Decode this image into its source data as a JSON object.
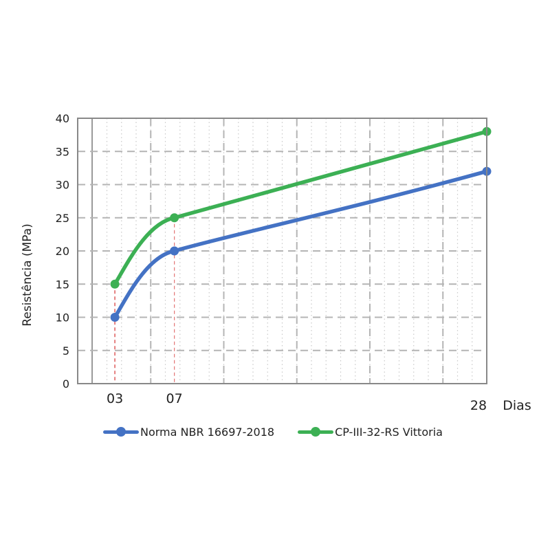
{
  "chart_data": {
    "type": "line",
    "title": "",
    "xlabel": "Dias",
    "ylabel": "Resistência (MPa)",
    "ylim": [
      0,
      40
    ],
    "xlim": [
      0.5,
      28
    ],
    "yticks": [
      "0",
      "5",
      "10",
      "15",
      "20",
      "25",
      "30",
      "35",
      "40"
    ],
    "xticks": [
      {
        "value": 3,
        "label": "03"
      },
      {
        "value": 7,
        "label": "07"
      },
      {
        "value": 28,
        "label": "28"
      }
    ],
    "grid": true,
    "legend_position": "bottom",
    "series": [
      {
        "name": "Norma NBR 16697-2018",
        "color": "#4472c4",
        "x": [
          3,
          7,
          28
        ],
        "y": [
          10,
          20,
          32
        ]
      },
      {
        "name": "CP-III-32-RS Vittoria",
        "color": "#3cb054",
        "x": [
          3,
          7,
          28
        ],
        "y": [
          15,
          25,
          38
        ]
      }
    ],
    "reference_lines_color": "#e06666"
  }
}
